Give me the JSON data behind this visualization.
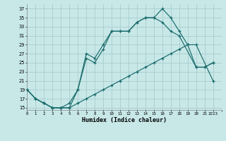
{
  "xlabel": "Humidex (Indice chaleur)",
  "background_color": "#c8e8e8",
  "grid_color": "#a8cccc",
  "line_color": "#1a6b6b",
  "xlim": [
    0,
    23
  ],
  "ylim": [
    14.5,
    38
  ],
  "yticks": [
    15,
    17,
    19,
    21,
    23,
    25,
    27,
    29,
    31,
    33,
    35,
    37
  ],
  "xticks": [
    0,
    1,
    2,
    3,
    4,
    5,
    6,
    7,
    8,
    9,
    10,
    11,
    12,
    13,
    14,
    15,
    16,
    17,
    18,
    19,
    20,
    21,
    22,
    23
  ],
  "xtick_labels": [
    "0",
    "1",
    "2",
    "3",
    "4",
    "5",
    "6",
    "7",
    "8",
    "9",
    "10",
    "11",
    "12",
    "13",
    "14",
    "15",
    "16",
    "17",
    "18",
    "19",
    "20",
    "21",
    "2223",
    ""
  ],
  "series1_x": [
    0,
    1,
    2,
    3,
    4,
    5,
    6,
    7,
    8,
    9,
    10,
    11,
    12,
    13,
    14,
    15,
    16,
    17,
    18,
    19,
    20,
    21,
    22
  ],
  "series1_y": [
    19,
    17,
    16,
    15,
    15,
    15,
    19,
    27,
    26,
    29,
    32,
    32,
    32,
    34,
    35,
    35,
    37,
    35,
    32,
    29,
    24,
    24,
    25
  ],
  "series2_x": [
    0,
    1,
    2,
    3,
    4,
    5,
    6,
    7,
    8,
    9,
    10,
    11,
    12,
    13,
    14,
    15,
    16,
    17,
    18,
    20,
    21,
    22
  ],
  "series2_y": [
    19,
    17,
    16,
    15,
    15,
    16,
    19,
    26,
    25,
    28,
    32,
    32,
    32,
    34,
    35,
    35,
    34,
    32,
    31,
    24,
    24,
    25
  ],
  "series3_x": [
    0,
    1,
    2,
    3,
    4,
    5,
    6,
    7,
    8,
    9,
    10,
    11,
    12,
    13,
    14,
    15,
    16,
    17,
    18,
    19,
    20,
    22
  ],
  "series3_y": [
    19,
    17,
    16,
    15,
    15,
    15,
    16,
    17,
    18,
    19,
    20,
    21,
    22,
    23,
    24,
    25,
    26,
    27,
    28,
    29,
    29,
    21
  ]
}
